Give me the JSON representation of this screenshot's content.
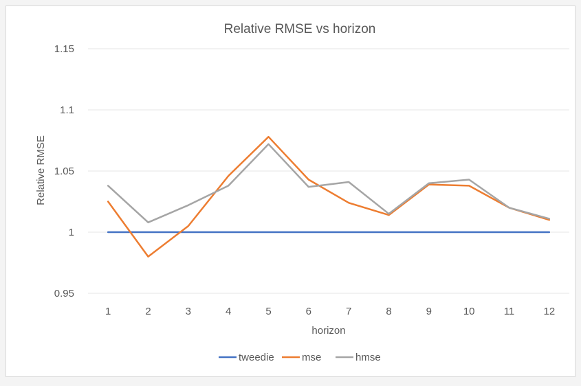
{
  "chart_data": {
    "type": "line",
    "title": "Relative RMSE vs horizon",
    "xlabel": "horizon",
    "ylabel": "Relative RMSE",
    "ylim": [
      0.95,
      1.15
    ],
    "yticks": [
      "0.95",
      "1",
      "1.05",
      "1.1",
      "1.15"
    ],
    "ytick_values": [
      0.95,
      1.0,
      1.05,
      1.1,
      1.15
    ],
    "categories": [
      "1",
      "2",
      "3",
      "4",
      "5",
      "6",
      "7",
      "8",
      "9",
      "10",
      "11",
      "12"
    ],
    "grid": true,
    "legend_position": "bottom",
    "series": [
      {
        "name": "tweedie",
        "color": "#4472c4",
        "values": [
          1.0,
          1.0,
          1.0,
          1.0,
          1.0,
          1.0,
          1.0,
          1.0,
          1.0,
          1.0,
          1.0,
          1.0
        ]
      },
      {
        "name": "mse",
        "color": "#ed7d31",
        "values": [
          1.025,
          0.98,
          1.005,
          1.046,
          1.078,
          1.043,
          1.024,
          1.014,
          1.039,
          1.038,
          1.02,
          1.01
        ]
      },
      {
        "name": "hmse",
        "color": "#a5a5a5",
        "values": [
          1.038,
          1.008,
          1.022,
          1.038,
          1.072,
          1.037,
          1.041,
          1.015,
          1.04,
          1.043,
          1.02,
          1.011
        ]
      }
    ]
  }
}
